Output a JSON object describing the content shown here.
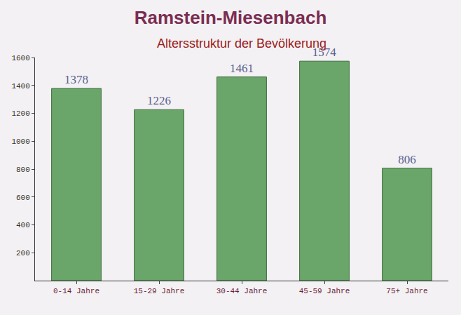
{
  "chart_data": {
    "type": "bar",
    "title": "Ramstein-Miesenbach",
    "subtitle": "Altersstruktur der Bevölkerung",
    "categories": [
      "0-14 Jahre",
      "15-29 Jahre",
      "30-44 Jahre",
      "45-59 Jahre",
      "75+ Jahre"
    ],
    "values": [
      1378,
      1226,
      1461,
      1574,
      806
    ],
    "color": "#6aa56a",
    "ylim": [
      0,
      1600
    ],
    "yticks": [
      200,
      400,
      600,
      800,
      1000,
      1200,
      1400,
      1600
    ],
    "grid": false,
    "data_labels": true
  }
}
